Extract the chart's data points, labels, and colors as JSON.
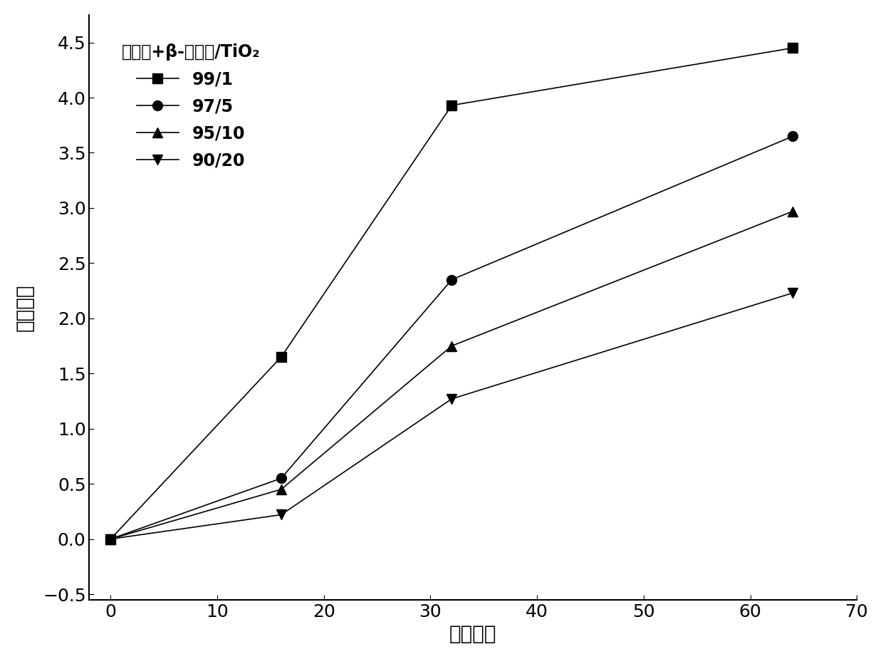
{
  "series": [
    {
      "label": "99/1",
      "marker": "s",
      "x": [
        0,
        16,
        32,
        64
      ],
      "y": [
        0.0,
        1.65,
        3.93,
        4.45
      ]
    },
    {
      "label": "97/5",
      "marker": "o",
      "x": [
        0,
        16,
        32,
        64
      ],
      "y": [
        0.0,
        0.55,
        2.35,
        3.65
      ]
    },
    {
      "label": "95/10",
      "marker": "^",
      "x": [
        0,
        16,
        32,
        64
      ],
      "y": [
        0.0,
        0.45,
        1.75,
        2.97
      ]
    },
    {
      "label": "90/20",
      "marker": "v",
      "x": [
        0,
        16,
        32,
        64
      ],
      "y": [
        0.0,
        0.22,
        1.27,
        2.23
      ]
    }
  ],
  "legend_title": "聚丙烯+β-成核剂/TiO₂",
  "xlabel": "老化时间",
  "ylabel": "炳基指数",
  "xlim": [
    -2,
    70
  ],
  "ylim": [
    -0.55,
    4.75
  ],
  "xticks": [
    0,
    10,
    20,
    30,
    40,
    50,
    60,
    70
  ],
  "yticks": [
    -0.5,
    0.0,
    0.5,
    1.0,
    1.5,
    2.0,
    2.5,
    3.0,
    3.5,
    4.0,
    4.5
  ],
  "line_color": "#000000",
  "marker_color": "#000000",
  "background_color": "#ffffff",
  "markersize": 10,
  "linewidth": 1.2,
  "label_fontsize": 20,
  "tick_fontsize": 18,
  "legend_fontsize": 17
}
